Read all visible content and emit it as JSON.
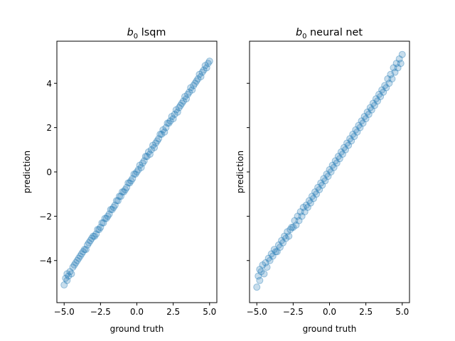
{
  "chart_data": [
    {
      "type": "scatter",
      "title_main": "b",
      "title_sub": "0",
      "title_rest": " lsqm",
      "xlabel": "ground truth",
      "ylabel": "prediction",
      "xlim": [
        -5.5,
        5.5
      ],
      "ylim": [
        -5.9,
        5.9
      ],
      "xticks": [
        -5.0,
        -2.5,
        0.0,
        2.5,
        5.0
      ],
      "xtick_labels": [
        "−5.0",
        "−2.5",
        "0.0",
        "2.5",
        "5.0"
      ],
      "yticks": [
        -4,
        -2,
        0,
        2,
        4
      ],
      "ytick_labels": [
        "−4",
        "−2",
        "0",
        "2",
        "4"
      ],
      "show_y_tick_labels": true,
      "grid": false,
      "marker_color": "#1f77b4",
      "marker_alpha": 0.25,
      "series": [
        {
          "x": [
            -5.0,
            -4.9,
            -4.8,
            -4.8,
            -4.7,
            -4.6,
            -4.5,
            -4.4,
            -4.3,
            -4.2,
            -4.1,
            -4.0,
            -3.9,
            -3.8,
            -3.7,
            -3.6,
            -3.5,
            -3.4,
            -3.3,
            -3.2,
            -3.1,
            -3.0,
            -2.9,
            -2.8,
            -2.7,
            -2.6,
            -2.5,
            -2.4,
            -2.3,
            -2.2,
            -2.1,
            -2.0,
            -1.9,
            -1.8,
            -1.7,
            -1.6,
            -1.5,
            -1.4,
            -1.3,
            -1.2,
            -1.1,
            -1.0,
            -0.9,
            -0.8,
            -0.7,
            -0.6,
            -0.5,
            -0.4,
            -0.3,
            -0.2,
            -0.1,
            0.0,
            0.1,
            0.2,
            0.3,
            0.4,
            0.5,
            0.6,
            0.7,
            0.8,
            0.9,
            1.0,
            1.1,
            1.2,
            1.3,
            1.4,
            1.5,
            1.6,
            1.7,
            1.8,
            1.9,
            2.0,
            2.1,
            2.2,
            2.3,
            2.4,
            2.5,
            2.6,
            2.7,
            2.8,
            2.9,
            3.0,
            3.1,
            3.2,
            3.3,
            3.4,
            3.5,
            3.6,
            3.7,
            3.8,
            3.9,
            4.0,
            4.1,
            4.2,
            4.3,
            4.4,
            4.5,
            4.6,
            4.7,
            4.8,
            4.9,
            5.0
          ],
          "y": [
            -5.1,
            -4.8,
            -4.6,
            -4.9,
            -4.7,
            -4.5,
            -4.6,
            -4.3,
            -4.2,
            -4.1,
            -4.0,
            -3.9,
            -3.8,
            -3.7,
            -3.6,
            -3.5,
            -3.5,
            -3.3,
            -3.2,
            -3.1,
            -3.0,
            -2.9,
            -2.9,
            -2.8,
            -2.6,
            -2.6,
            -2.5,
            -2.3,
            -2.3,
            -2.1,
            -2.1,
            -2.0,
            -1.9,
            -1.7,
            -1.7,
            -1.6,
            -1.5,
            -1.3,
            -1.3,
            -1.1,
            -1.1,
            -0.9,
            -0.9,
            -0.8,
            -0.7,
            -0.5,
            -0.5,
            -0.4,
            -0.3,
            -0.1,
            -0.1,
            0.0,
            0.1,
            0.3,
            0.2,
            0.4,
            0.5,
            0.7,
            0.7,
            0.9,
            0.8,
            1.0,
            1.2,
            1.1,
            1.3,
            1.4,
            1.5,
            1.7,
            1.7,
            1.9,
            1.8,
            2.0,
            2.2,
            2.2,
            2.3,
            2.5,
            2.4,
            2.6,
            2.8,
            2.7,
            2.9,
            3.0,
            3.1,
            3.2,
            3.4,
            3.3,
            3.5,
            3.6,
            3.8,
            3.7,
            3.9,
            4.0,
            4.1,
            4.2,
            4.4,
            4.3,
            4.5,
            4.6,
            4.8,
            4.7,
            4.9,
            5.0
          ]
        }
      ]
    },
    {
      "type": "scatter",
      "title_main": "b",
      "title_sub": "0",
      "title_rest": " neural net",
      "xlabel": "ground truth",
      "ylabel": "prediction",
      "xlim": [
        -5.5,
        5.5
      ],
      "ylim": [
        -5.9,
        5.9
      ],
      "xticks": [
        -5.0,
        -2.5,
        0.0,
        2.5,
        5.0
      ],
      "xtick_labels": [
        "−5.0",
        "−2.5",
        "0.0",
        "2.5",
        "5.0"
      ],
      "yticks": [
        -4,
        -2,
        0,
        2,
        4
      ],
      "ytick_labels": [
        "",
        "",
        "",
        "",
        ""
      ],
      "show_y_tick_labels": false,
      "grid": false,
      "marker_color": "#1f77b4",
      "marker_alpha": 0.25,
      "series": [
        {
          "x": [
            -5.0,
            -4.9,
            -4.8,
            -4.8,
            -4.7,
            -4.6,
            -4.5,
            -4.4,
            -4.3,
            -4.2,
            -4.1,
            -4.0,
            -3.9,
            -3.8,
            -3.7,
            -3.6,
            -3.5,
            -3.4,
            -3.3,
            -3.2,
            -3.1,
            -3.0,
            -2.9,
            -2.8,
            -2.7,
            -2.6,
            -2.5,
            -2.4,
            -2.3,
            -2.2,
            -2.1,
            -2.0,
            -1.9,
            -1.8,
            -1.7,
            -1.6,
            -1.5,
            -1.4,
            -1.3,
            -1.2,
            -1.1,
            -1.0,
            -0.9,
            -0.8,
            -0.7,
            -0.6,
            -0.5,
            -0.4,
            -0.3,
            -0.2,
            -0.1,
            0.0,
            0.1,
            0.2,
            0.3,
            0.4,
            0.5,
            0.6,
            0.7,
            0.8,
            0.9,
            1.0,
            1.1,
            1.2,
            1.3,
            1.4,
            1.5,
            1.6,
            1.7,
            1.8,
            1.9,
            2.0,
            2.1,
            2.2,
            2.3,
            2.4,
            2.5,
            2.6,
            2.7,
            2.8,
            2.9,
            3.0,
            3.1,
            3.2,
            3.3,
            3.4,
            3.5,
            3.6,
            3.7,
            3.8,
            3.9,
            4.0,
            4.1,
            4.2,
            4.3,
            4.4,
            4.5,
            4.6,
            4.7,
            4.8,
            4.9,
            5.0
          ],
          "y": [
            -5.2,
            -4.7,
            -4.4,
            -4.9,
            -4.5,
            -4.2,
            -4.6,
            -4.1,
            -4.3,
            -3.9,
            -4.0,
            -3.7,
            -3.8,
            -3.5,
            -3.6,
            -3.6,
            -3.3,
            -3.4,
            -3.1,
            -3.2,
            -2.9,
            -3.0,
            -2.7,
            -2.9,
            -2.6,
            -2.5,
            -2.5,
            -2.2,
            -2.4,
            -2.0,
            -2.2,
            -1.8,
            -2.0,
            -1.6,
            -1.8,
            -1.5,
            -1.6,
            -1.3,
            -1.4,
            -1.1,
            -1.2,
            -0.9,
            -1.0,
            -0.7,
            -0.8,
            -0.5,
            -0.6,
            -0.3,
            -0.4,
            -0.1,
            -0.2,
            0.1,
            0.0,
            0.3,
            0.2,
            0.5,
            0.4,
            0.7,
            0.6,
            0.9,
            0.8,
            1.1,
            1.0,
            1.3,
            1.2,
            1.5,
            1.4,
            1.7,
            1.6,
            1.9,
            1.8,
            2.1,
            2.0,
            2.3,
            2.2,
            2.5,
            2.4,
            2.7,
            2.6,
            2.9,
            2.8,
            3.1,
            3.0,
            3.3,
            3.2,
            3.5,
            3.4,
            3.7,
            3.6,
            3.9,
            3.8,
            4.2,
            4.0,
            4.4,
            4.2,
            4.7,
            4.5,
            4.9,
            4.7,
            5.1,
            4.9,
            5.3
          ]
        }
      ]
    }
  ]
}
